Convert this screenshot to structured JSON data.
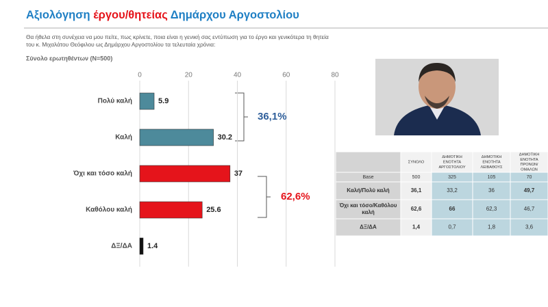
{
  "header": {
    "title_parts": [
      "Αξιολόγηση ",
      "έργου/θητείας",
      " Δημάρχου Αργοστολίου"
    ],
    "question": [
      "Θα ήθελα στη συνέχεια να μου πείτε, πως κρίνετε, ποια είναι η γενική σας εντύπωση για το έργο και γενικότερα τη θητεία",
      "του κ. Μιχαλάτου Θεόφιλου ως Δημάρχου Αργοστολίου  τα τελευταία χρόνια:"
    ],
    "subtitle": "Σύνολο ερωτηθέντων (N=500)"
  },
  "chart_data": {
    "type": "hbar",
    "categories": [
      "Πολύ καλή",
      "Καλή",
      "Όχι και τόσο καλή",
      "Καθόλου καλή",
      "ΔΞ/ΔΑ"
    ],
    "values": [
      5.9,
      30.2,
      37,
      25.6,
      1.4
    ],
    "colors": [
      "#4d8a9b",
      "#4d8a9b",
      "#e5141b",
      "#e5141b",
      "#111111"
    ],
    "xlim": [
      0,
      80
    ],
    "xticks": [
      0,
      20,
      40,
      60,
      80
    ],
    "grid": true,
    "annotations": [
      {
        "text": "36,1%",
        "color": "#2e5e9a"
      },
      {
        "text": "62,6%",
        "color": "#e5141b"
      }
    ]
  },
  "table": {
    "header": [
      [],
      [
        "ΣΥΝΟΛΟ"
      ],
      [
        "ΔΗΜΟΤΙΚΗ",
        "ΕΝΟΤΗΤΑ",
        "ΑΡΓΟΣΤΟΛΙΟΥ"
      ],
      [
        "ΔΗΜΟΤΙΚΗ",
        "ΕΝΟΤΗΤΑ",
        "ΛΕΙΒΑΘΟΥΣ"
      ],
      [
        "ΔΗΜΟΤΙΚΗ",
        "ΕΝΟΤΗΤΑ",
        "ΠΡΟΝΩΝ/",
        "ΟΜΑΛΩΝ"
      ]
    ],
    "rows": [
      [
        [
          "Base"
        ],
        [
          "500"
        ],
        [
          "325"
        ],
        [
          "105"
        ],
        [
          "70"
        ]
      ],
      [
        [
          "Καλή/Πολύ καλή"
        ],
        [
          "36,1"
        ],
        [
          "33,2"
        ],
        [
          "36"
        ],
        [
          "49,7"
        ]
      ],
      [
        [
          "Όχι και τόσο/Καθόλου",
          "καλή"
        ],
        [
          "62,6"
        ],
        [
          "66"
        ],
        [
          "62,3"
        ],
        [
          "46,7"
        ]
      ],
      [
        [
          "ΔΞ/ΔΑ"
        ],
        [
          "1,4"
        ],
        [
          "0,7"
        ],
        [
          "1,8"
        ],
        [
          "3,6"
        ]
      ]
    ]
  }
}
